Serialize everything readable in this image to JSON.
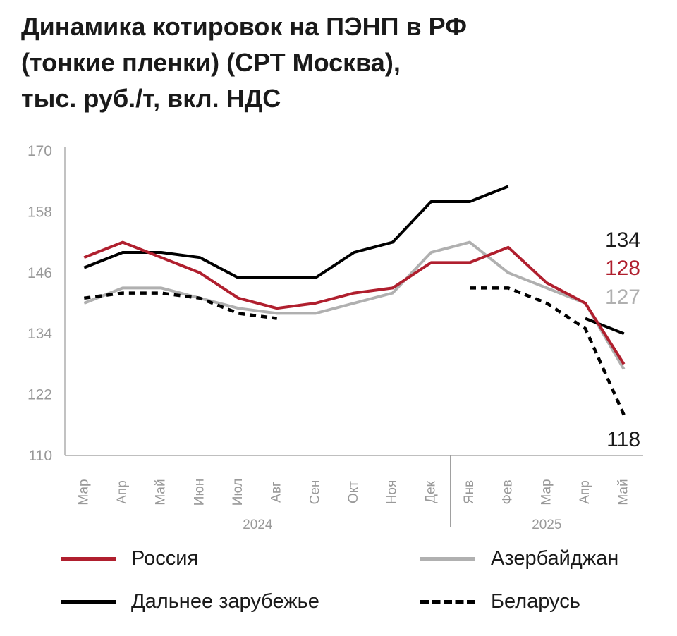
{
  "title": {
    "line1": "Динамика котировок на ПЭНП в РФ",
    "line2": "(тонкие пленки) (СРТ Москва),",
    "line3": "тыс. руб./т, вкл. НДС"
  },
  "colors": {
    "russia": "#b01f2e",
    "foreign": "#000000",
    "azerbaijan": "#b0b0b0",
    "belarus": "#000000",
    "axis": "#999999",
    "tick_text": "#999999"
  },
  "chart_data": {
    "type": "line",
    "categories": [
      "Мар",
      "Апр",
      "Май",
      "Июн",
      "Июл",
      "Авг",
      "Сен",
      "Окт",
      "Ноя",
      "Дек",
      "Янв",
      "Фев",
      "Мар",
      "Апр",
      "Май"
    ],
    "year_groups": [
      {
        "label": "2024",
        "from": 0,
        "to": 9
      },
      {
        "label": "2025",
        "from": 10,
        "to": 14
      }
    ],
    "yticks": [
      110,
      122,
      134,
      146,
      158,
      170
    ],
    "ylim": [
      110,
      170
    ],
    "grid": false,
    "legend_position": "bottom",
    "series": [
      {
        "key": "russia",
        "name": "Россия",
        "style": "solid",
        "values": [
          149,
          152,
          149,
          146,
          141,
          139,
          140,
          142,
          143,
          148,
          148,
          151,
          144,
          140,
          128
        ]
      },
      {
        "key": "foreign",
        "name": "Дальнее зарубежье",
        "style": "solid",
        "values": [
          147,
          150,
          150,
          149,
          145,
          145,
          145,
          150,
          152,
          160,
          160,
          163,
          null,
          137,
          134
        ]
      },
      {
        "key": "azerbaijan",
        "name": "Азербайджан",
        "style": "solid",
        "values": [
          140,
          143,
          143,
          141,
          139,
          138,
          138,
          140,
          142,
          150,
          152,
          146,
          143,
          140,
          127
        ]
      },
      {
        "key": "belarus",
        "name": "Беларусь",
        "style": "dotted",
        "values": [
          141,
          142,
          142,
          141,
          138,
          137,
          null,
          null,
          null,
          null,
          143,
          143,
          140,
          135,
          118
        ]
      }
    ],
    "end_labels": [
      {
        "key": "foreign",
        "text": "134"
      },
      {
        "key": "russia",
        "text": "128"
      },
      {
        "key": "azerbaijan",
        "text": "127"
      },
      {
        "key": "belarus",
        "text": "118"
      }
    ]
  }
}
